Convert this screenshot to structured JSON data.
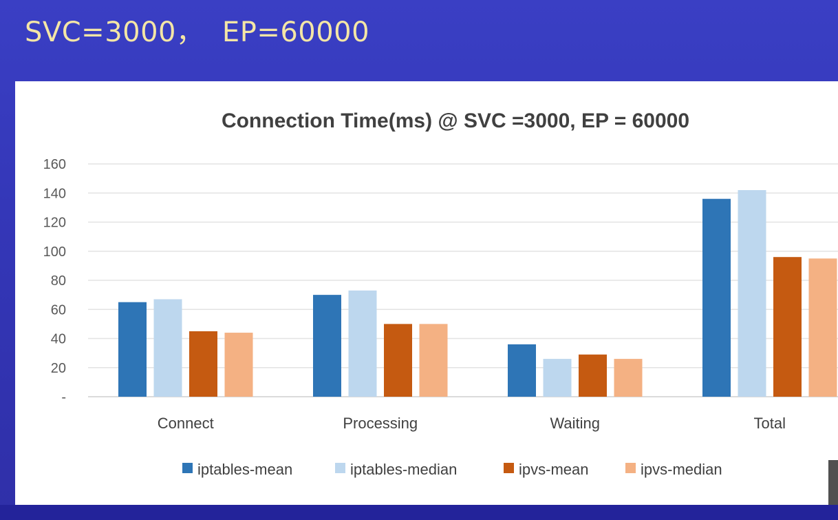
{
  "slide": {
    "title": "SVC=3000，  EP=60000"
  },
  "chart_data": {
    "type": "bar",
    "title": "Connection Time(ms) @ SVC =3000, EP = 60000",
    "xlabel": "",
    "ylabel": "",
    "ylim": [
      0,
      160
    ],
    "yticks": [
      {
        "value": 0,
        "label": "-"
      },
      {
        "value": 20,
        "label": "20"
      },
      {
        "value": 40,
        "label": "40"
      },
      {
        "value": 60,
        "label": "60"
      },
      {
        "value": 80,
        "label": "80"
      },
      {
        "value": 100,
        "label": "100"
      },
      {
        "value": 120,
        "label": "120"
      },
      {
        "value": 140,
        "label": "140"
      },
      {
        "value": 160,
        "label": "160"
      }
    ],
    "grid": true,
    "legend_position": "bottom",
    "categories": [
      "Connect",
      "Processing",
      "Waiting",
      "Total"
    ],
    "series": [
      {
        "name": "iptables-mean",
        "color": "#2e75b6",
        "values": [
          65,
          70,
          36,
          136
        ]
      },
      {
        "name": "iptables-median",
        "color": "#bdd7ee",
        "values": [
          67,
          73,
          26,
          142
        ]
      },
      {
        "name": "ipvs-mean",
        "color": "#c55a11",
        "values": [
          45,
          50,
          29,
          96
        ]
      },
      {
        "name": "ipvs-median",
        "color": "#f4b183",
        "values": [
          44,
          50,
          26,
          95
        ]
      }
    ]
  }
}
